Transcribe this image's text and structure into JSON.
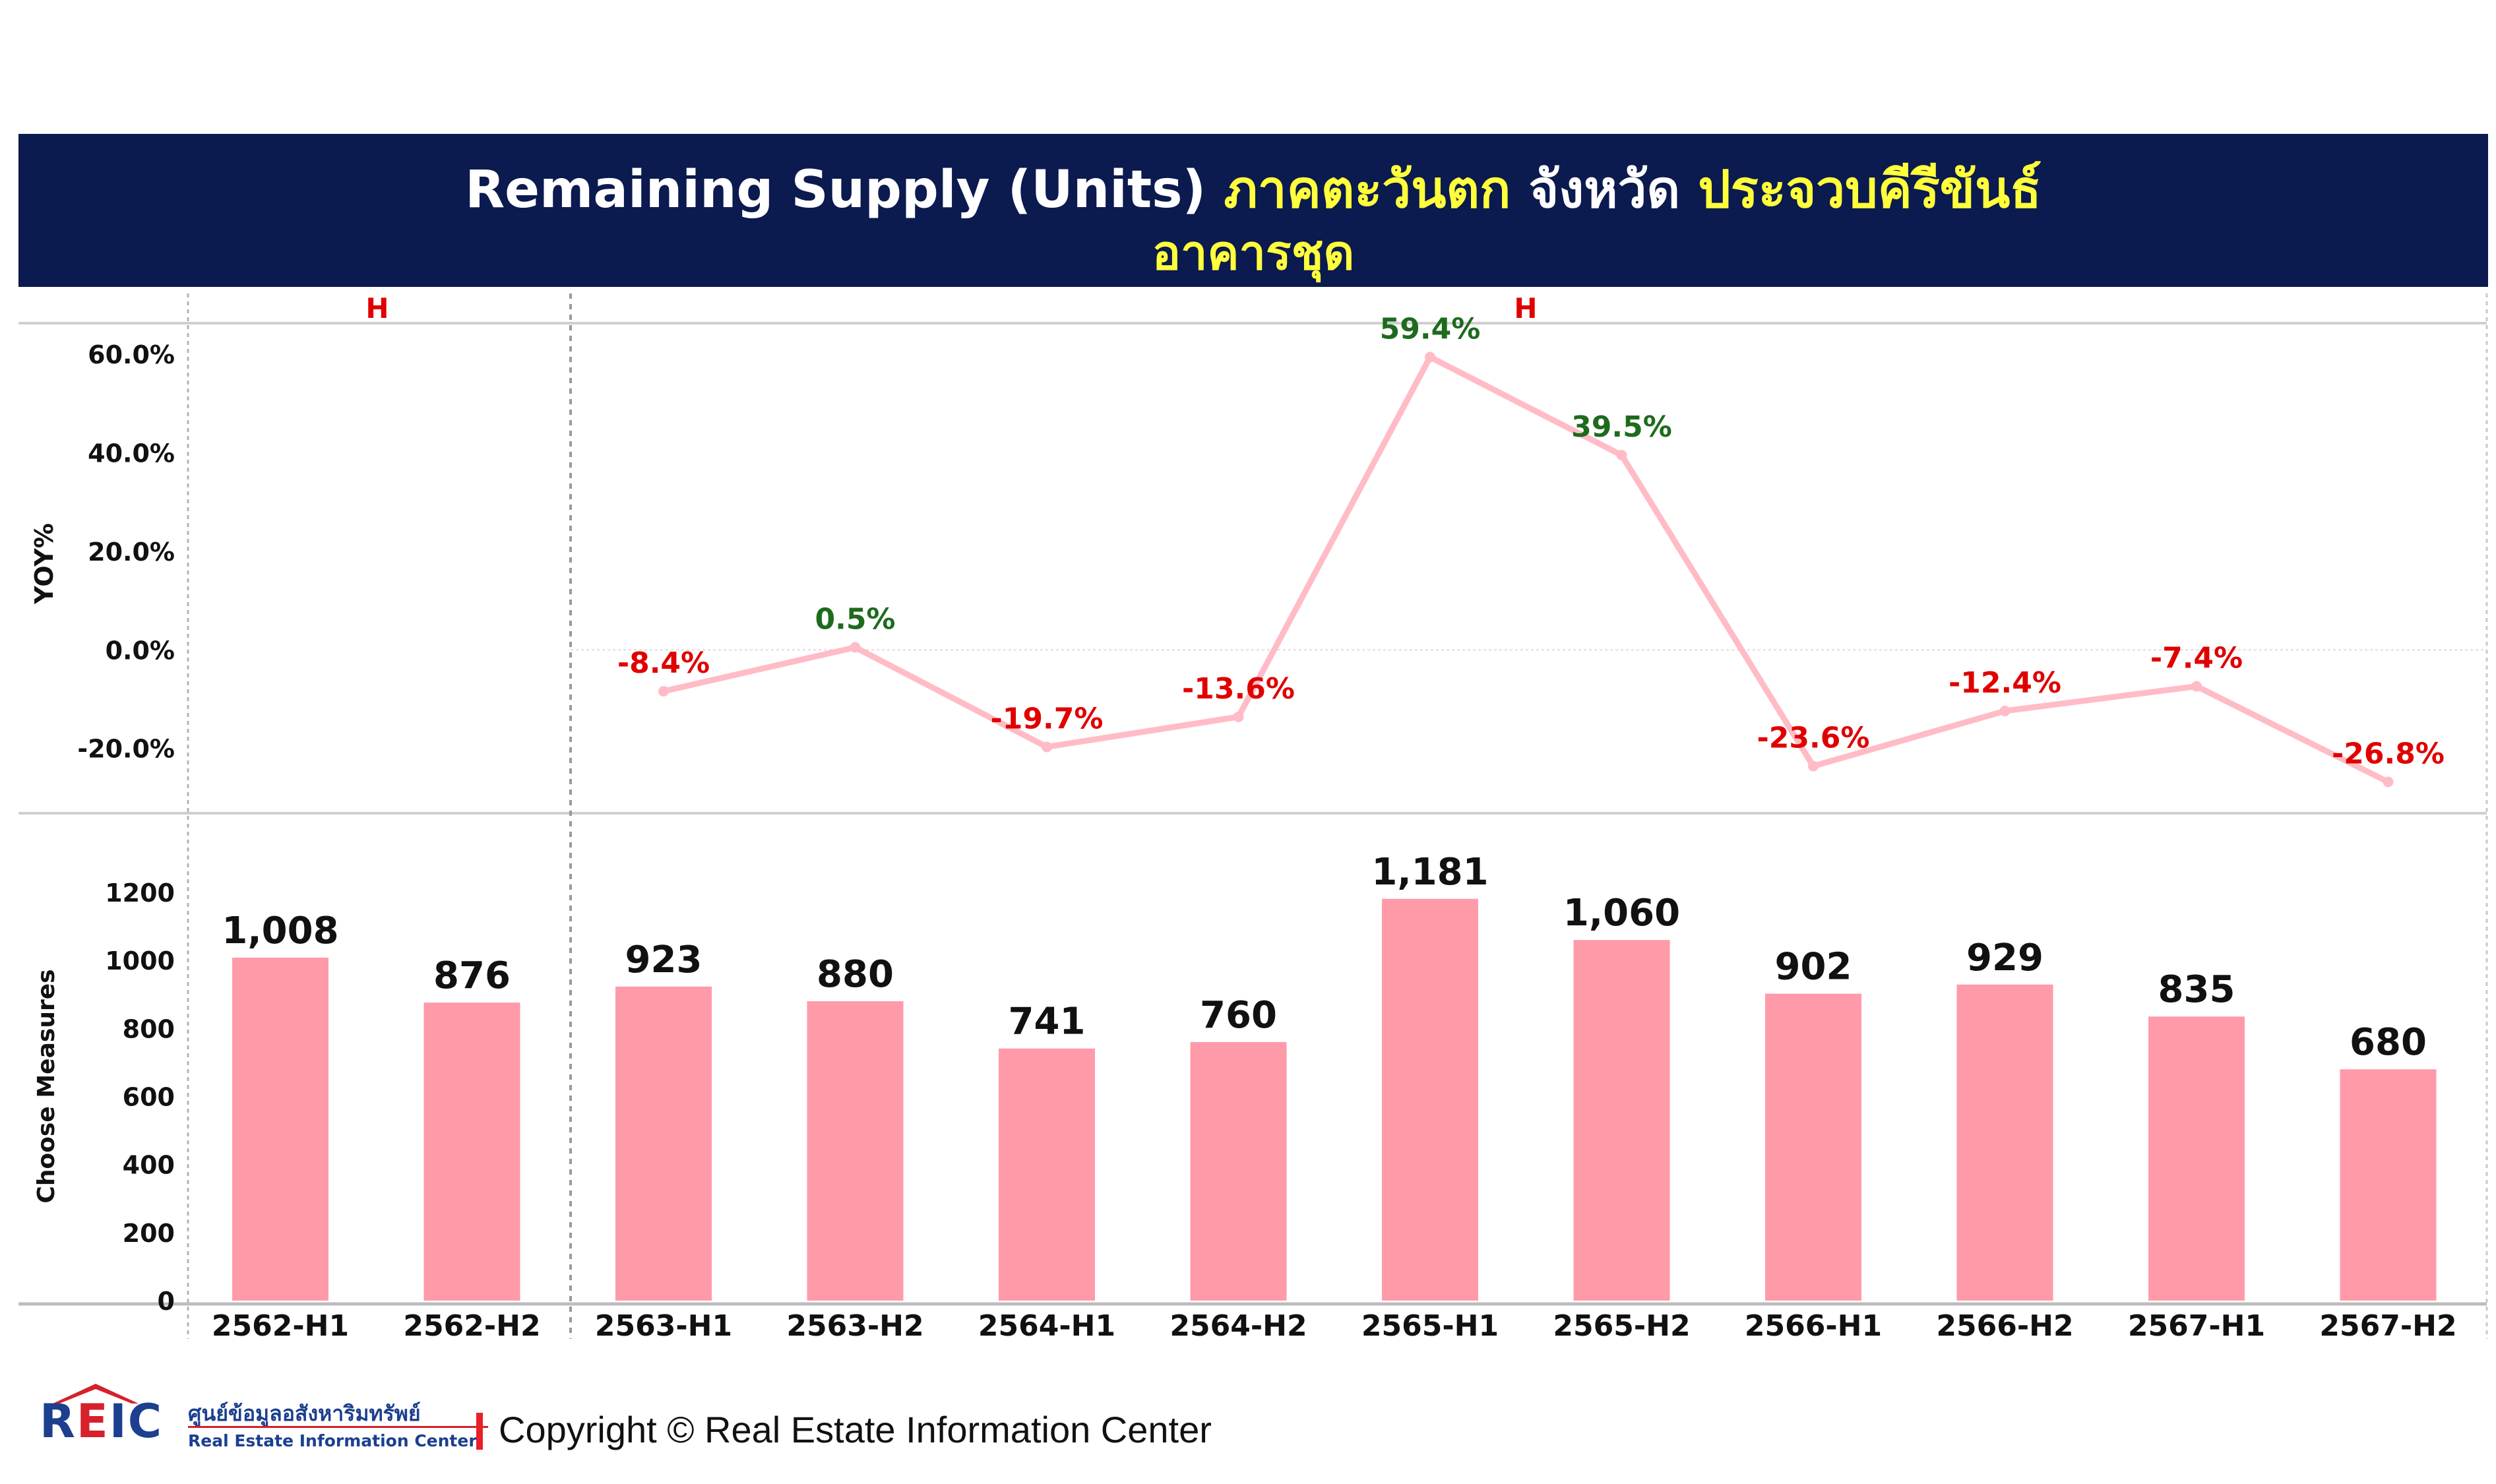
{
  "title": {
    "line1_white": "Remaining Supply (Units) ",
    "line1_yellow_a": "ภาคตะวันตก",
    "line1_white_b": " จังหวัด ",
    "line1_yellow_b": "ประจวบคีรีขันธ์",
    "line2_yellow": "อาคารชุด"
  },
  "colors": {
    "title_bg": "#0b1a4f",
    "title_yellow": "#ffff3c",
    "bar": "#ff9aa9",
    "line": "#ffbcc6",
    "positive_label": "#1d6b1d",
    "negative_label": "#e00000",
    "section_marker": "#e00000"
  },
  "chart_data": [
    {
      "type": "line",
      "ylabel": "YOY%",
      "section_markers": [
        "H",
        "H"
      ],
      "categories": [
        "2562-H1",
        "2562-H2",
        "2563-H1",
        "2563-H2",
        "2564-H1",
        "2564-H2",
        "2565-H1",
        "2565-H2",
        "2566-H1",
        "2566-H2",
        "2567-H1",
        "2567-H2"
      ],
      "values": [
        null,
        null,
        -8.4,
        0.5,
        -19.7,
        -13.6,
        59.4,
        39.5,
        -23.6,
        -12.4,
        -7.4,
        -26.8
      ],
      "value_labels": [
        "",
        "",
        "-8.4%",
        "0.5%",
        "-19.7%",
        "-13.6%",
        "59.4%",
        "39.5%",
        "-23.6%",
        "-12.4%",
        "-7.4%",
        "-26.8%"
      ],
      "ytick_values": [
        60,
        40,
        20,
        0,
        -20
      ],
      "ytick_labels": [
        "60.0%",
        "40.0%",
        "20.0%",
        "0.0%",
        "-20.0%"
      ],
      "ylim": [
        -27,
        62
      ]
    },
    {
      "type": "bar",
      "ylabel": "Choose Measures",
      "categories": [
        "2562-H1",
        "2562-H2",
        "2563-H1",
        "2563-H2",
        "2564-H1",
        "2564-H2",
        "2565-H1",
        "2565-H2",
        "2566-H1",
        "2566-H2",
        "2567-H1",
        "2567-H2"
      ],
      "values": [
        1008,
        876,
        923,
        880,
        741,
        760,
        1181,
        1060,
        902,
        929,
        835,
        680
      ],
      "value_labels": [
        "1,008",
        "876",
        "923",
        "880",
        "741",
        "760",
        "1,181",
        "1,060",
        "902",
        "929",
        "835",
        "680"
      ],
      "ytick_values": [
        0,
        200,
        400,
        600,
        800,
        1000,
        1200
      ],
      "ytick_labels": [
        "0",
        "200",
        "400",
        "600",
        "800",
        "1000",
        "1200"
      ],
      "ylim": [
        0,
        1260
      ]
    }
  ],
  "footer": {
    "logo_text_r": "R",
    "logo_text_e": "E",
    "logo_text_ic": "IC",
    "logo_thai": "ศูนย์ข้อมูลอสังหาริมทรัพย์",
    "logo_eng": "Real Estate Information Center",
    "copyright": "Copyright © Real Estate Information Center"
  }
}
